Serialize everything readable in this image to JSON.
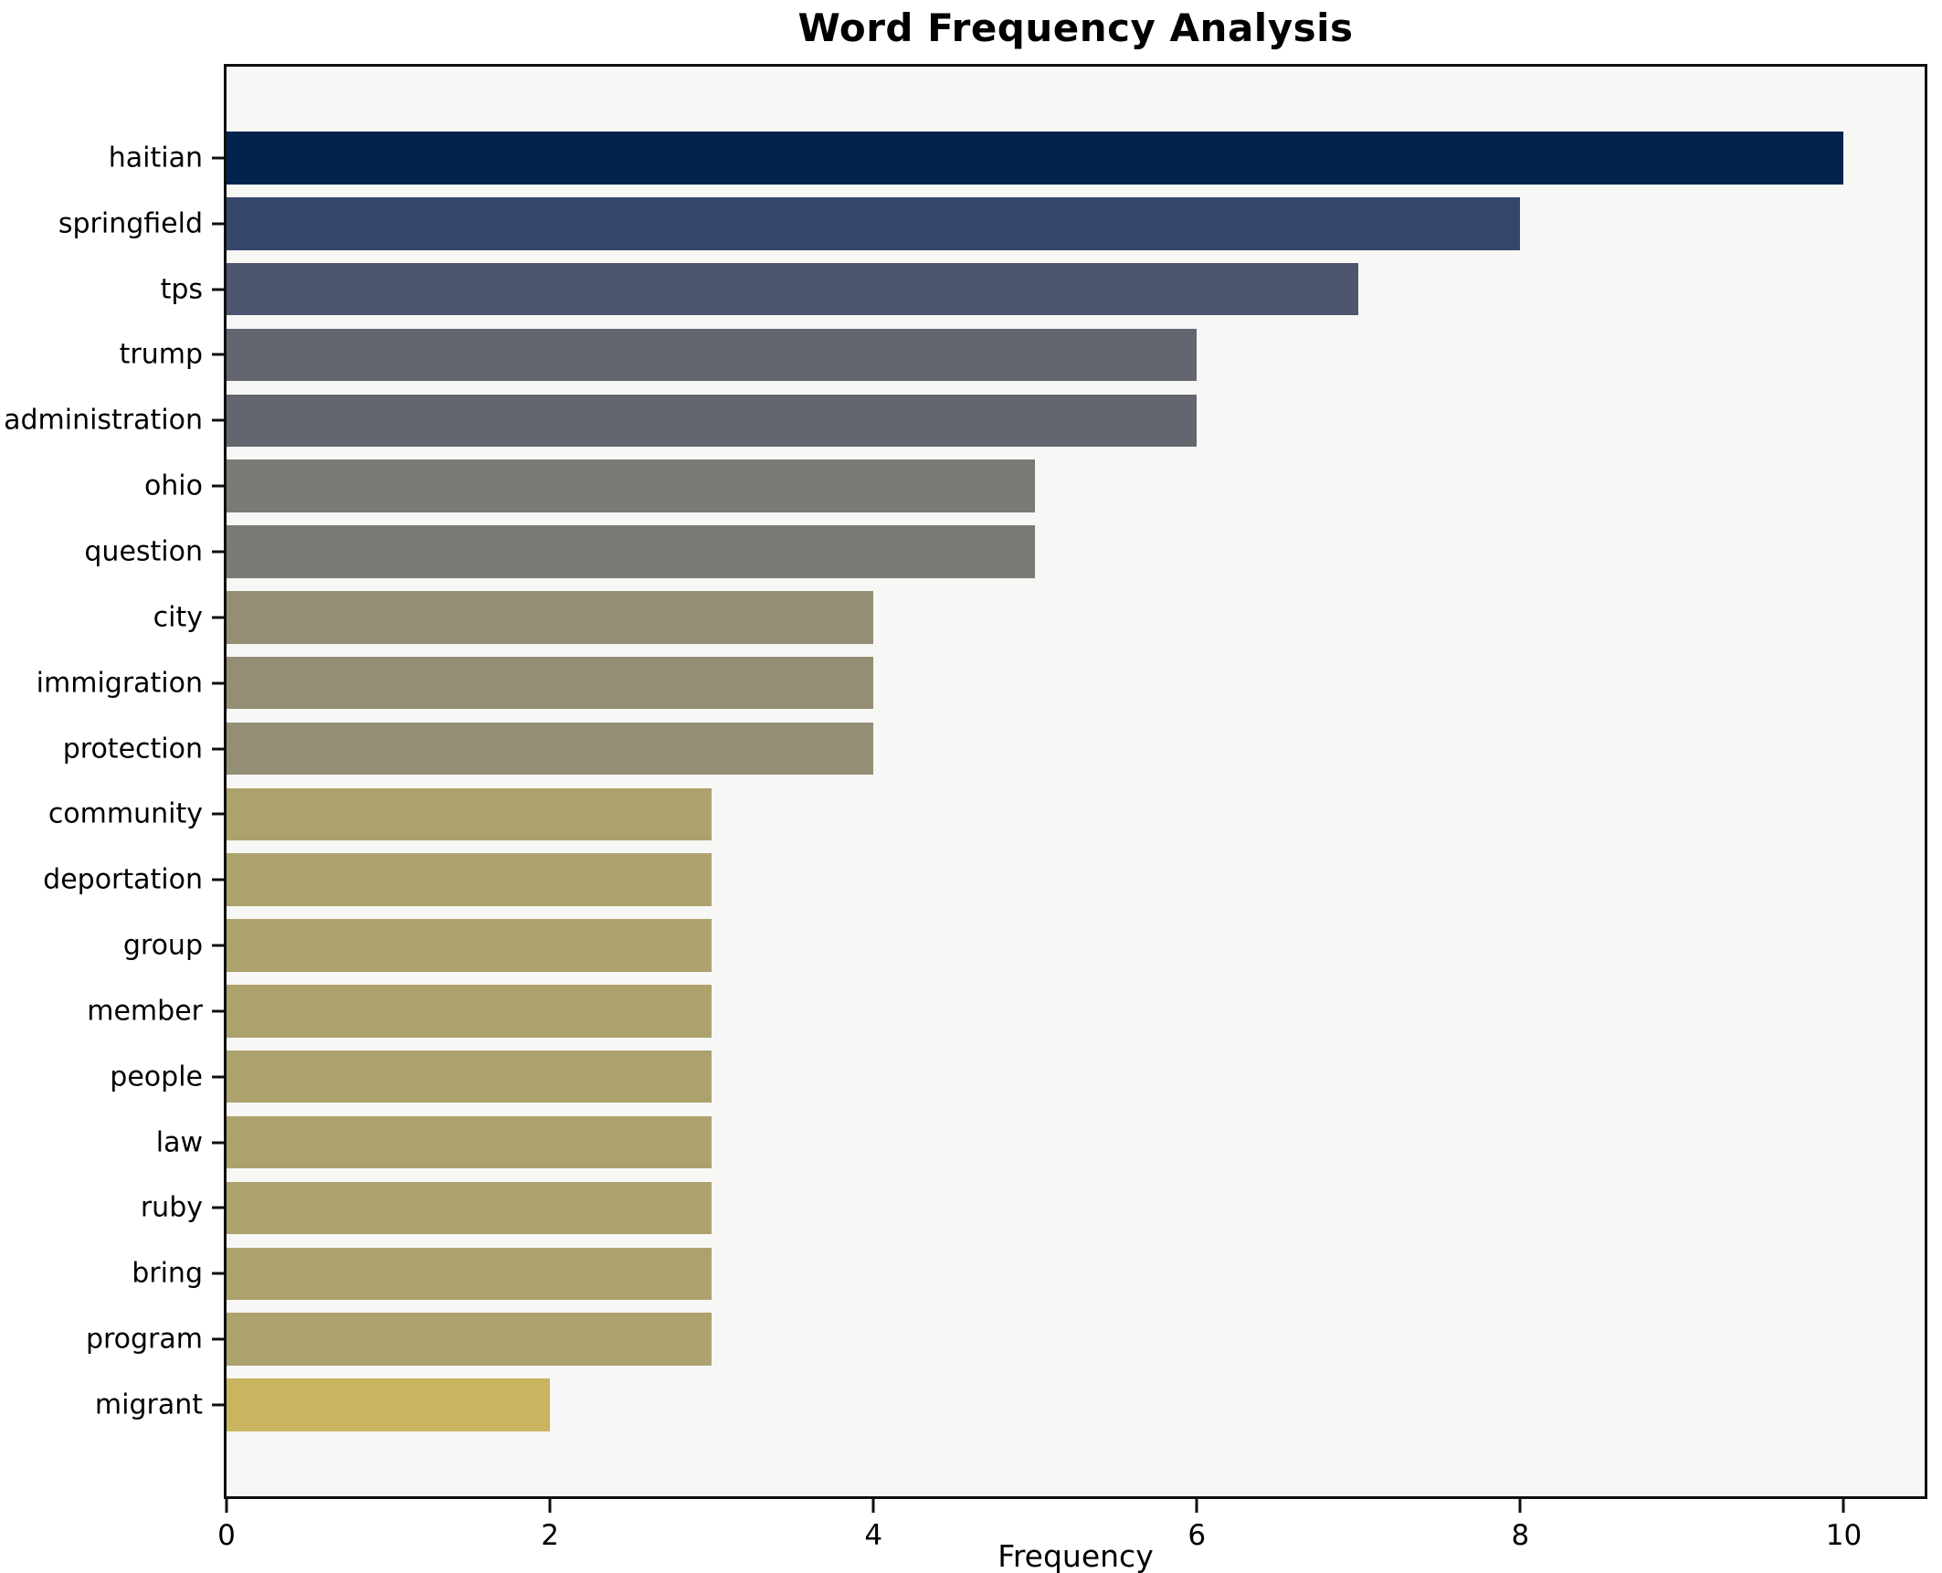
{
  "chart_data": {
    "type": "bar",
    "orientation": "horizontal",
    "title": "Word Frequency Analysis",
    "xlabel": "Frequency",
    "ylabel": "",
    "categories": [
      "haitian",
      "springfield",
      "tps",
      "trump",
      "administration",
      "ohio",
      "question",
      "city",
      "immigration",
      "protection",
      "community",
      "deportation",
      "group",
      "member",
      "people",
      "law",
      "ruby",
      "bring",
      "program",
      "migrant"
    ],
    "values": [
      10,
      8,
      7,
      6,
      6,
      5,
      5,
      4,
      4,
      4,
      3,
      3,
      3,
      3,
      3,
      3,
      3,
      3,
      3,
      2
    ],
    "bar_colors": [
      "#02234e",
      "#36476e",
      "#4d566e",
      "#63666f",
      "#63666f",
      "#7b7a75",
      "#7b7a75",
      "#948e75",
      "#948e75",
      "#948e75",
      "#ada26e",
      "#ada26e",
      "#ada26e",
      "#ada26e",
      "#ada26e",
      "#ada26e",
      "#ada26e",
      "#ada26e",
      "#ada26e",
      "#c9b45f"
    ],
    "xlim": [
      0,
      10.5
    ],
    "x_ticks": [
      0,
      2,
      4,
      6,
      8,
      10
    ],
    "x_tick_labels": [
      "0",
      "2",
      "4",
      "6",
      "8",
      "10"
    ],
    "grid": false,
    "legend": "none",
    "plot_background": "#f7f7f5",
    "figure_background": "#ffffff",
    "spine_color": "#0f0f0f"
  }
}
